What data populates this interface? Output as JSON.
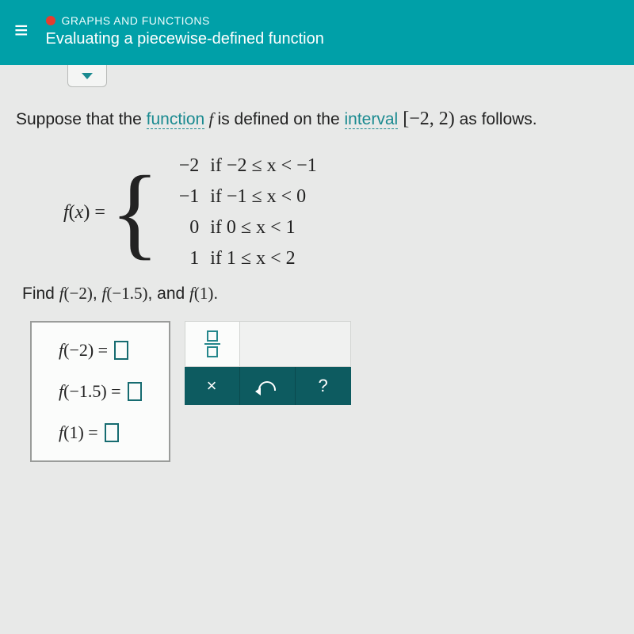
{
  "header": {
    "category": "GRAPHS AND FUNCTIONS",
    "title": "Evaluating a piecewise-defined function",
    "bg_color": "#00a0a8",
    "dot_color": "#e43d2f"
  },
  "problem": {
    "prefix": "Suppose that the ",
    "kw_function": "function",
    "mid1": " f is defined on the ",
    "kw_interval": "interval",
    "interval_open": " [",
    "interval_vals": "−2,  2",
    "interval_close": ")",
    "suffix": " as follows."
  },
  "piecewise": {
    "lhs": "f(x) = ",
    "cases": [
      {
        "value": "−2",
        "cond": "if −2 ≤ x < −1"
      },
      {
        "value": "−1",
        "cond": "if −1 ≤ x < 0"
      },
      {
        "value": "0",
        "cond": "if 0 ≤ x < 1"
      },
      {
        "value": "1",
        "cond": "if 1 ≤ x < 2"
      }
    ]
  },
  "find": {
    "prefix": "Find ",
    "items": [
      "f(−2)",
      "f(−1.5)",
      "f(1)"
    ],
    "sep1": ", ",
    "sep2": ", and ",
    "end": "."
  },
  "answers": [
    {
      "label": "f(−2) ="
    },
    {
      "label": "f(−1.5) ="
    },
    {
      "label": "f(1) ="
    }
  ],
  "toolpad": {
    "x_label": "×",
    "help_label": "?",
    "btn_bg": "#0d5b60"
  }
}
